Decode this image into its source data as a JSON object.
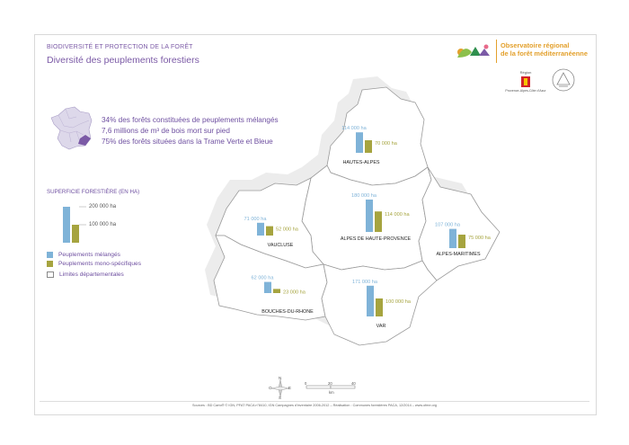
{
  "header": {
    "supertitle": "BIODIVERSITÉ ET PROTECTION DE LA FORÊT",
    "title": "Diversité des peuplements forestiers"
  },
  "logo": {
    "line1": "Observatoire régional",
    "line2": "de la forêt méditerranéenne",
    "region_label": "Région",
    "region_name": "Provence-Alpes-Côte d'Azur"
  },
  "stats": [
    "34% des forêts constituées de peuplements mélangés",
    "7,6 millions de m³ de bois mort sur pied",
    "75% des forêts situées dans la Trame Verte et Bleue"
  ],
  "legend": {
    "title": "SUPERFICIE FORESTIÈRE (EN HA)",
    "scale_high": "200 000 ha",
    "scale_low": "100 000 ha",
    "mixed": "Peuplements mélangés",
    "mono": "Peuplements mono-spécifiques",
    "limits": "Limites départementales"
  },
  "colors": {
    "mixed": "#7fb3d8",
    "mono": "#a6a43f",
    "map_fill": "#ffffff",
    "map_stroke": "#9a9a9a",
    "map_shadow": "#e6e6e6",
    "accent": "#7b5aa6"
  },
  "departments": [
    {
      "name": "HAUTES-ALPES",
      "mixed_ha": 114000,
      "mono_ha": 70000,
      "mixed_label": "114 000 ha",
      "mono_label": "70 000 ha"
    },
    {
      "name": "ALPES DE HAUTE-PROVENCE",
      "mixed_ha": 180000,
      "mono_ha": 114000,
      "mixed_label": "180 000 ha",
      "mono_label": "114 000 ha"
    },
    {
      "name": "ALPES-MARITIMES",
      "mixed_ha": 107000,
      "mono_ha": 75000,
      "mixed_label": "107 000 ha",
      "mono_label": "75 000 ha"
    },
    {
      "name": "VAUCLUSE",
      "mixed_ha": 71000,
      "mono_ha": 52000,
      "mixed_label": "71 000 ha",
      "mono_label": "52 000 ha"
    },
    {
      "name": "BOUCHES-DU-RHONE",
      "mixed_ha": 62000,
      "mono_ha": 23000,
      "mixed_label": "62 000 ha",
      "mono_label": "23 000 ha"
    },
    {
      "name": "VAR",
      "mixed_ha": 171000,
      "mono_ha": 100000,
      "mixed_label": "171 000 ha",
      "mono_label": "100 000 ha"
    }
  ],
  "compass": {
    "n": "N",
    "e": "E",
    "s": "S",
    "o": "O"
  },
  "scalebar": {
    "t0": "0",
    "t1": "20",
    "t2": "40",
    "unit": "km"
  },
  "footer": "Sources : BD Carto® © IGN, PFAT PACA n°8410, IGN Campagnes d'inventaire 2006-2012 – Réalisation : Communes forestières PACA, 12/2014 – www.ofme.org"
}
